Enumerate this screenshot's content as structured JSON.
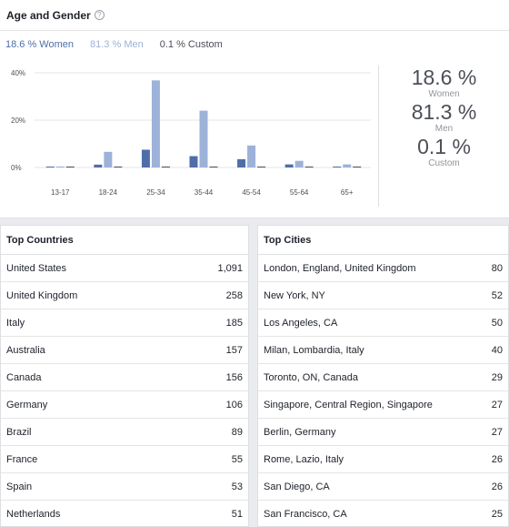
{
  "header": {
    "title": "Age and Gender",
    "help_icon": "question-circle-icon"
  },
  "legend": {
    "women": "18.6 % Women",
    "men": "81.3 % Men",
    "custom": "0.1 % Custom"
  },
  "summary": {
    "women_pct": "18.6 %",
    "women_label": "Women",
    "men_pct": "81.3 %",
    "men_label": "Men",
    "custom_pct": "0.1 %",
    "custom_label": "Custom"
  },
  "colors": {
    "women": "#4f6ea9",
    "men": "#9db2d9",
    "custom": "#4b4f56"
  },
  "chart_data": {
    "type": "bar",
    "categories": [
      "13-17",
      "18-24",
      "25-34",
      "35-44",
      "45-54",
      "55-64",
      "65+"
    ],
    "series": [
      {
        "name": "Women",
        "values": [
          0.2,
          1.2,
          7.5,
          4.8,
          3.5,
          1.3,
          0.3
        ]
      },
      {
        "name": "Men",
        "values": [
          0.4,
          6.6,
          36.8,
          24.0,
          9.3,
          2.8,
          1.3
        ]
      },
      {
        "name": "Custom",
        "values": [
          0,
          0,
          0,
          0,
          0,
          0,
          0
        ]
      }
    ],
    "yticks": [
      "40%",
      "20%",
      "0%"
    ],
    "ylim": [
      0,
      40
    ],
    "grid": true
  },
  "countries": {
    "title": "Top Countries",
    "rows": [
      {
        "name": "United States",
        "value": "1,091"
      },
      {
        "name": "United Kingdom",
        "value": "258"
      },
      {
        "name": "Italy",
        "value": "185"
      },
      {
        "name": "Australia",
        "value": "157"
      },
      {
        "name": "Canada",
        "value": "156"
      },
      {
        "name": "Germany",
        "value": "106"
      },
      {
        "name": "Brazil",
        "value": "89"
      },
      {
        "name": "France",
        "value": "55"
      },
      {
        "name": "Spain",
        "value": "53"
      },
      {
        "name": "Netherlands",
        "value": "51"
      }
    ]
  },
  "cities": {
    "title": "Top Cities",
    "rows": [
      {
        "name": "London, England, United Kingdom",
        "value": "80"
      },
      {
        "name": "New York, NY",
        "value": "52"
      },
      {
        "name": "Los Angeles, CA",
        "value": "50"
      },
      {
        "name": "Milan, Lombardia, Italy",
        "value": "40"
      },
      {
        "name": "Toronto, ON, Canada",
        "value": "29"
      },
      {
        "name": "Singapore, Central Region, Singapore",
        "value": "27"
      },
      {
        "name": "Berlin, Germany",
        "value": "27"
      },
      {
        "name": "Rome, Lazio, Italy",
        "value": "26"
      },
      {
        "name": "San Diego, CA",
        "value": "26"
      },
      {
        "name": "San Francisco, CA",
        "value": "25"
      }
    ]
  }
}
